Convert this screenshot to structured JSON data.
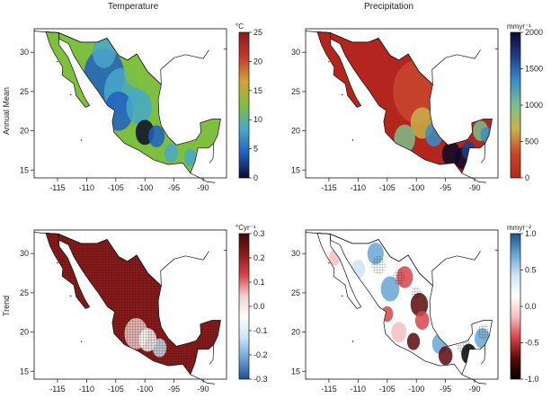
{
  "titles": {
    "temperature": "Temperature",
    "precipitation": "Precipitation"
  },
  "row_labels": {
    "annual_mean": "Annual Mean",
    "trend": "Trend"
  },
  "axes": {
    "lon_ticks": [
      "-115",
      "-110",
      "-105",
      "-100",
      "-95",
      "-90"
    ],
    "lat_ticks": [
      "30",
      "25",
      "20",
      "15"
    ]
  },
  "panels": [
    {
      "id": "temp-mean",
      "unit": "°C",
      "colorbar_ticks": [
        "25",
        "20",
        "15",
        "10",
        "5",
        "0"
      ],
      "colors": [
        "#8b1a1a",
        "#c0392b",
        "#d6a13a",
        "#7fbf3f",
        "#48a8c8",
        "#1f5fbf",
        "#0b0b2a"
      ]
    },
    {
      "id": "precip-mean",
      "unit": "mmyr⁻¹",
      "colorbar_ticks": [
        "2000",
        "1500",
        "1000",
        "500",
        "0"
      ],
      "colors": [
        "#0b0b2a",
        "#1e3e8c",
        "#3a8ec8",
        "#7bc08b",
        "#c9b24a",
        "#c8462b",
        "#b3261e"
      ]
    },
    {
      "id": "temp-trend",
      "unit": "°Cyr⁻¹",
      "colorbar_ticks": [
        "0.3",
        "0.2",
        "0.1",
        "0.0",
        "-0.1",
        "-0.2",
        "-0.3"
      ],
      "colors": [
        "#3a0a0a",
        "#8b1a1a",
        "#d6454a",
        "#f4d0d0",
        "#ffffff",
        "#cfe4f4",
        "#6aa6d6",
        "#1f4f8f"
      ]
    },
    {
      "id": "precip-trend",
      "unit": "mmyr⁻²",
      "colorbar_ticks": [
        "1.0",
        "0.5",
        "0.0",
        "-0.5",
        "-1.0"
      ],
      "colors": [
        "#1f4f8f",
        "#6aa6d6",
        "#cfe4f4",
        "#ffffff",
        "#f4c0c0",
        "#d6454a",
        "#5a0a0a",
        "#000000"
      ]
    }
  ]
}
